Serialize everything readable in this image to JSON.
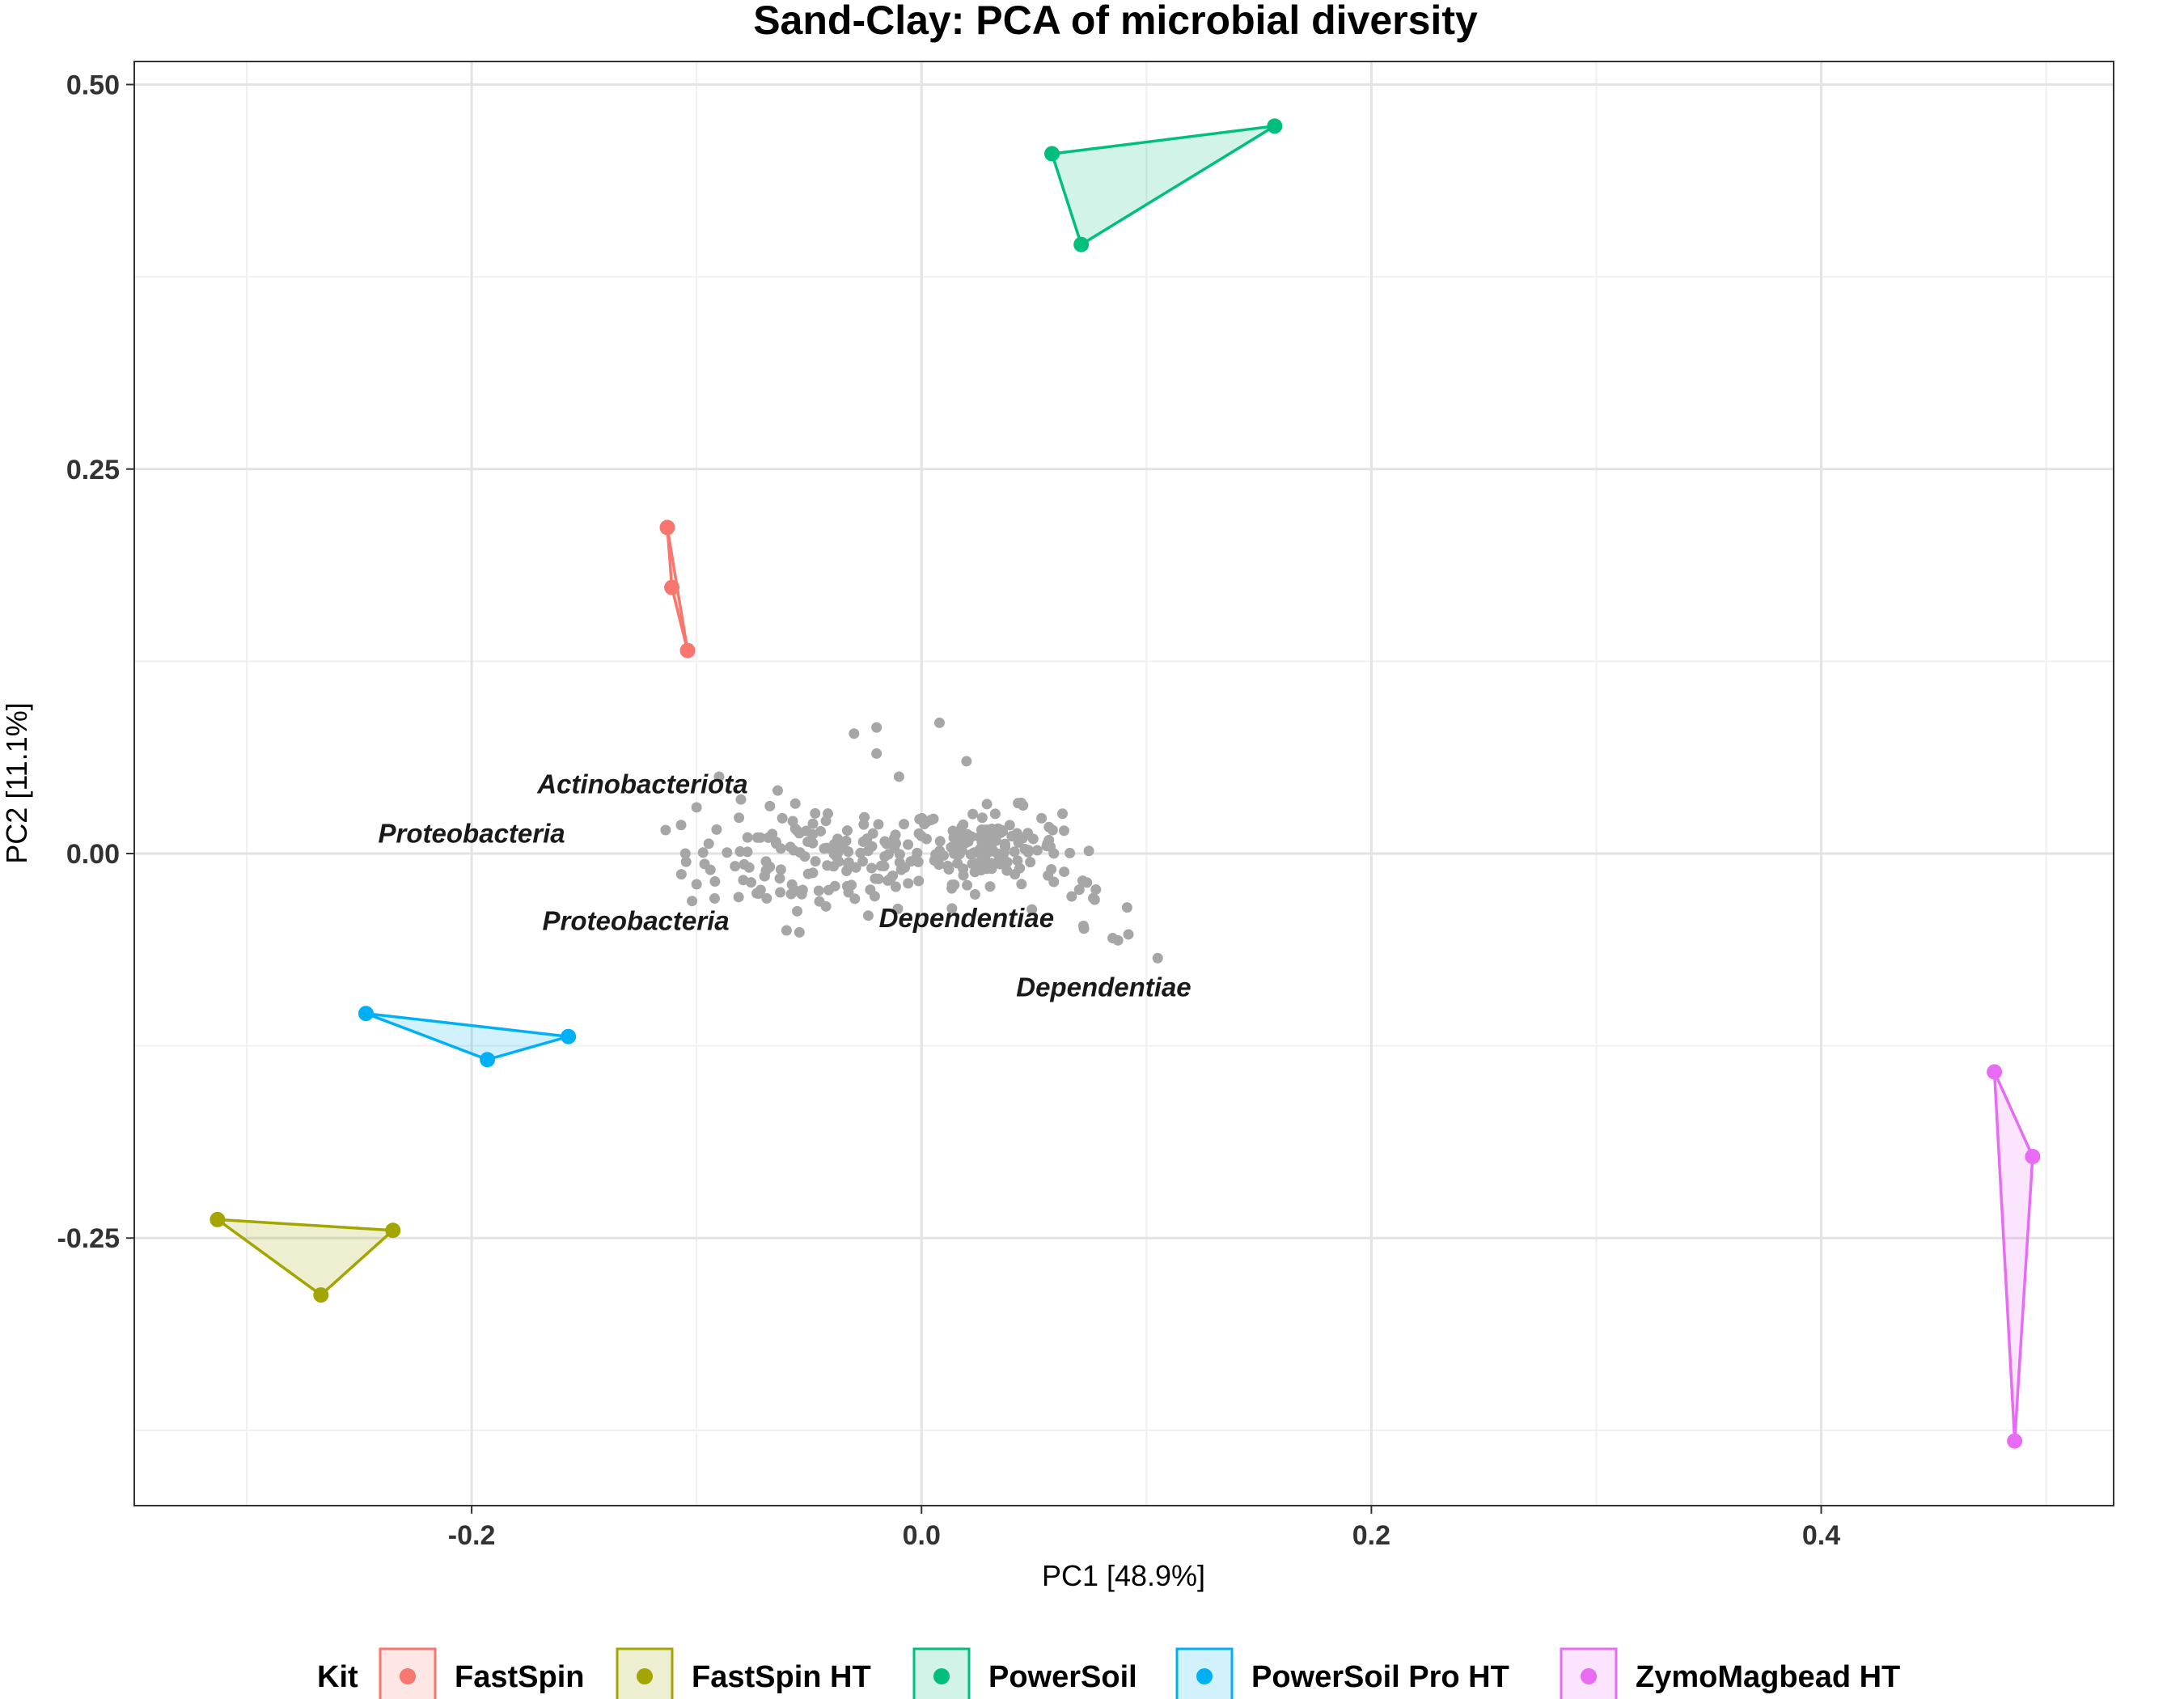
{
  "chart_data": {
    "type": "scatter",
    "title": "Sand-Clay: PCA of microbial diversity",
    "xlabel": "PC1 [48.9%]",
    "ylabel": "PC2 [11.1%]",
    "xlim": [
      -0.35,
      0.53
    ],
    "ylim": [
      -0.424,
      0.515
    ],
    "x_ticks": [
      -0.2,
      0.0,
      0.2,
      0.4
    ],
    "x_tick_labels": [
      "-0.2",
      "0.0",
      "0.2",
      "0.4"
    ],
    "y_ticks": [
      -0.25,
      0.0,
      0.25,
      0.5
    ],
    "y_tick_labels": [
      "-0.25",
      "0.00",
      "0.25",
      "0.50"
    ],
    "grid": true,
    "legend": {
      "title": "Kit",
      "position": "bottom",
      "entries": [
        "FastSpin",
        "FastSpin HT",
        "PowerSoil",
        "PowerSoil Pro HT",
        "ZymoMagbead HT"
      ]
    },
    "series": [
      {
        "name": "FastSpin",
        "color": "#F8766D",
        "points": [
          [
            -0.113,
            0.212
          ],
          [
            -0.111,
            0.173
          ],
          [
            -0.104,
            0.132
          ]
        ]
      },
      {
        "name": "FastSpin HT",
        "color": "#A3A500",
        "points": [
          [
            -0.313,
            -0.238
          ],
          [
            -0.235,
            -0.245
          ],
          [
            -0.267,
            -0.287
          ]
        ]
      },
      {
        "name": "PowerSoil",
        "color": "#00BF7D",
        "points": [
          [
            0.058,
            0.455
          ],
          [
            0.157,
            0.473
          ],
          [
            0.071,
            0.396
          ]
        ]
      },
      {
        "name": "PowerSoil Pro HT",
        "color": "#00B0F6",
        "points": [
          [
            -0.247,
            -0.104
          ],
          [
            -0.157,
            -0.119
          ],
          [
            -0.193,
            -0.134
          ]
        ]
      },
      {
        "name": "ZymoMagbead HT",
        "color": "#E76BF3",
        "points": [
          [
            0.477,
            -0.142
          ],
          [
            0.494,
            -0.197
          ],
          [
            0.486,
            -0.382
          ]
        ]
      }
    ],
    "loadings_color": "#A6A6A6",
    "annotations": [
      {
        "text": "Actinobacteriota",
        "x": -0.124,
        "y": 0.045
      },
      {
        "text": "Proteobacteria",
        "x": -0.2,
        "y": 0.013
      },
      {
        "text": "Proteobacteria",
        "x": -0.127,
        "y": -0.044
      },
      {
        "text": "Dependentiae",
        "x": 0.02,
        "y": -0.042
      },
      {
        "text": "Dependentiae",
        "x": 0.081,
        "y": -0.087
      }
    ]
  }
}
